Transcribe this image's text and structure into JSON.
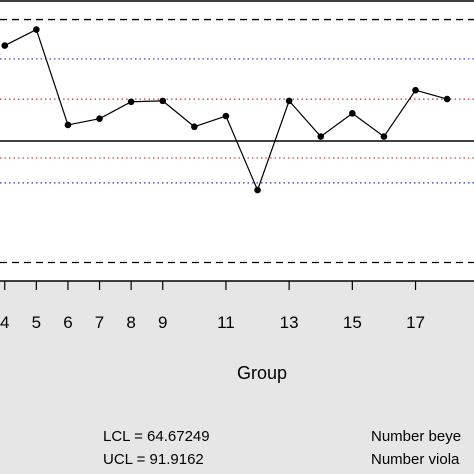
{
  "chart_data": {
    "type": "line",
    "xlabel": "Group",
    "x_tick_labels": [
      "4",
      "5",
      "6",
      "7",
      "8",
      "9",
      "11",
      "13",
      "15",
      "17"
    ],
    "x_tick_values": [
      4,
      5,
      6,
      7,
      8,
      9,
      11,
      13,
      15,
      17
    ],
    "xlim": [
      3.85,
      18.85
    ],
    "ylim": [
      62.6,
      94.0
    ],
    "x": [
      4,
      5,
      6,
      7,
      8,
      9,
      10,
      11,
      12,
      13,
      14,
      15,
      16,
      17,
      18
    ],
    "values": [
      89.0,
      90.8,
      80.1,
      80.8,
      82.7,
      82.8,
      79.9,
      81.1,
      72.8,
      82.8,
      78.8,
      81.4,
      78.8,
      84.0,
      83.0
    ],
    "center_line": 78.3,
    "sigma_lines": {
      "plus_two": 87.5,
      "plus_one": 83.0,
      "minus_one": 76.4,
      "minus_two": 73.6
    },
    "limits": {
      "lcl": 64.67249,
      "ucl": 91.9162
    },
    "grid": false,
    "colors": {
      "background": "#e6e6e6",
      "plot_background": "#ffffff",
      "points": "#000000",
      "two_sigma": "#3333aa",
      "one_sigma": "#cc3333"
    }
  },
  "stats": {
    "lcl_text": "LCL = 64.67249",
    "ucl_text": "UCL = 91.9162",
    "beyond_text": "Number beye",
    "violating_text": "Number viola"
  }
}
